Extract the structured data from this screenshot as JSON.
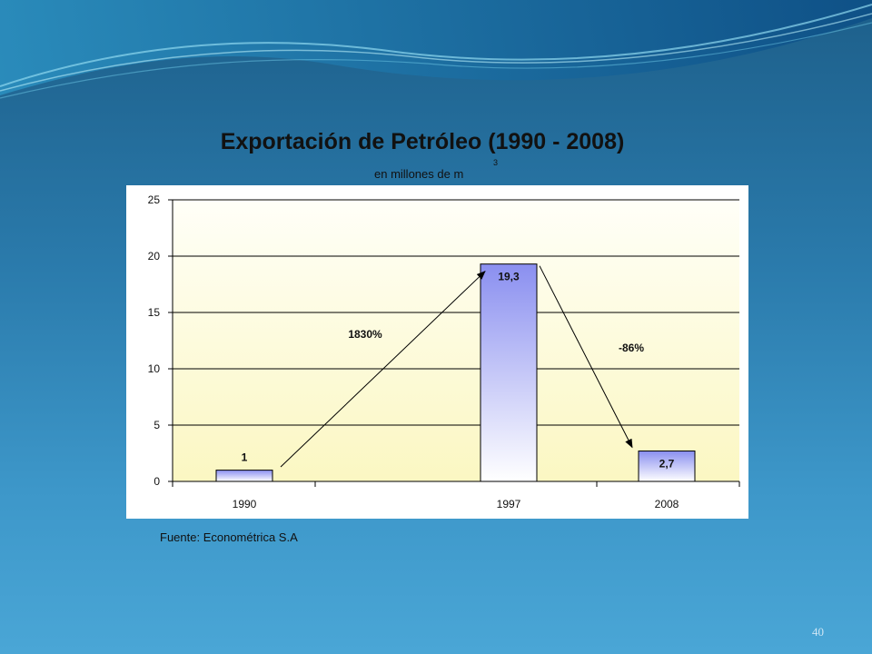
{
  "slide": {
    "title": "Exportación de Petróleo (1990 - 2008)",
    "subtitle": "en millones de m",
    "subtitle_superscript": "3",
    "source": "Fuente: Econométrica S.A",
    "page_number": "40"
  },
  "colors": {
    "bar_top": "#8a8ff0",
    "bar_bottom": "#ffffff",
    "plot_top": "#fffff8",
    "plot_bottom": "#fbf7c2",
    "text": "#111111"
  },
  "chart_data": {
    "type": "bar",
    "title": "Exportación de Petróleo (1990 - 2008)",
    "subtitle": "en millones de m3",
    "categories": [
      "1990",
      "1997",
      "2008"
    ],
    "values": [
      1,
      19.3,
      2.7
    ],
    "value_labels": [
      "1",
      "19,3",
      "2,7"
    ],
    "ylim": [
      0,
      25
    ],
    "yticks": [
      0,
      5,
      10,
      15,
      20,
      25
    ],
    "grid": true,
    "legend": "none",
    "annotations": [
      {
        "text": "1830%",
        "from": "1990",
        "to": "1997"
      },
      {
        "text": "-86%",
        "from": "1997",
        "to": "2008"
      }
    ]
  }
}
